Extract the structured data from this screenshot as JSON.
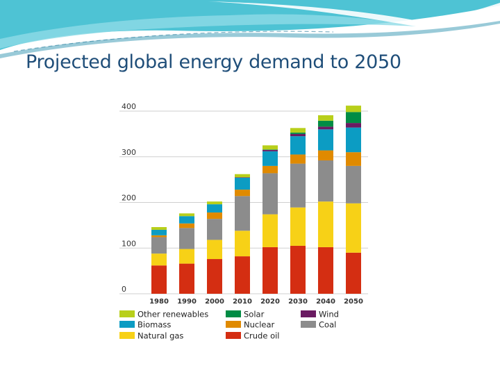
{
  "slide": {
    "title": "Projected global energy demand to 2050"
  },
  "chart_data": {
    "type": "bar",
    "stacked": true,
    "title": "",
    "xlabel": "",
    "ylabel": "",
    "ylim": [
      0,
      400
    ],
    "yticks": [
      0,
      100,
      200,
      300,
      400
    ],
    "grid": true,
    "legend_position": "bottom",
    "categories": [
      "1980",
      "1990",
      "2000",
      "2010",
      "2020",
      "2030",
      "2040",
      "2050"
    ],
    "series": [
      {
        "name": "Crude oil",
        "color": "#d42e12",
        "values": [
          62,
          66,
          76,
          82,
          102,
          105,
          102,
          90
        ]
      },
      {
        "name": "Natural gas",
        "color": "#f7d117",
        "values": [
          26,
          32,
          42,
          56,
          72,
          84,
          100,
          108
        ]
      },
      {
        "name": "Coal",
        "color": "#8c8c8c",
        "values": [
          36,
          46,
          46,
          76,
          90,
          96,
          90,
          82
        ]
      },
      {
        "name": "Nuclear",
        "color": "#e08a00",
        "values": [
          4,
          10,
          14,
          14,
          16,
          20,
          22,
          30
        ]
      },
      {
        "name": "Biomass",
        "color": "#0c9cc3",
        "values": [
          12,
          16,
          18,
          26,
          32,
          40,
          46,
          54
        ]
      },
      {
        "name": "Wind",
        "color": "#6a1b62",
        "values": [
          0,
          0,
          0,
          1,
          3,
          5,
          6,
          10
        ]
      },
      {
        "name": "Solar",
        "color": "#008c45",
        "values": [
          0,
          0,
          0,
          0,
          1,
          3,
          13,
          24
        ]
      },
      {
        "name": "Other renewables",
        "color": "#b8cf1a",
        "values": [
          6,
          6,
          6,
          7,
          9,
          10,
          12,
          14
        ]
      }
    ],
    "legend_order": [
      "Other renewables",
      "Solar",
      "Wind",
      "Biomass",
      "Nuclear",
      "Coal",
      "Natural gas",
      "Crude oil"
    ]
  }
}
